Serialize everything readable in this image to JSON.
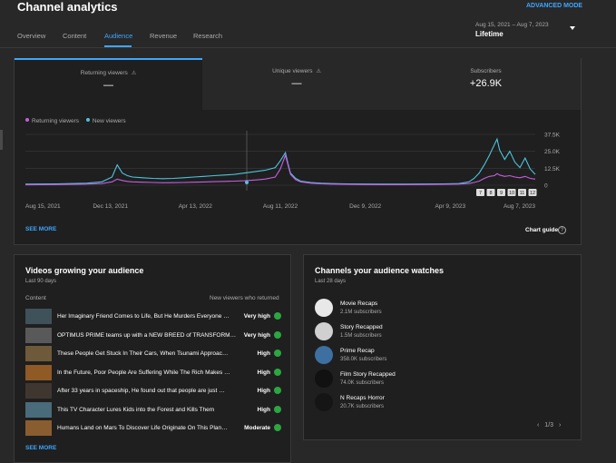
{
  "header": {
    "title": "Channel analytics",
    "advanced_mode": "ADVANCED MODE",
    "date_range": "Aug 15, 2021 – Aug 7, 2023",
    "period": "Lifetime"
  },
  "tabs": [
    {
      "label": "Overview"
    },
    {
      "label": "Content"
    },
    {
      "label": "Audience",
      "active": true
    },
    {
      "label": "Revenue"
    },
    {
      "label": "Research"
    }
  ],
  "kpis": [
    {
      "label": "Returning viewers",
      "value": "—"
    },
    {
      "label": "Unique viewers",
      "value": "—"
    },
    {
      "label": "Subscribers",
      "value": "+26.9K"
    }
  ],
  "chart_data": {
    "type": "line",
    "x_tick_labels": [
      "Aug 15, 2021",
      "Dec 13, 2021",
      "Apr 13, 2022",
      "Aug 11, 2022",
      "Dec 9, 2022",
      "Apr 9, 2023",
      "Aug 7, 2023"
    ],
    "y_tick_labels": [
      "37.5K",
      "25.0K",
      "12.5K",
      "0"
    ],
    "ylim": [
      0,
      37500
    ],
    "grid": true,
    "legend_position": "top-left",
    "x": [
      0,
      0.03,
      0.06,
      0.09,
      0.12,
      0.15,
      0.17,
      0.18,
      0.19,
      0.2,
      0.21,
      0.23,
      0.25,
      0.27,
      0.29,
      0.31,
      0.33,
      0.35,
      0.37,
      0.39,
      0.41,
      0.43,
      0.45,
      0.47,
      0.49,
      0.5,
      0.51,
      0.515,
      0.52,
      0.53,
      0.54,
      0.56,
      0.58,
      0.6,
      0.63,
      0.66,
      0.7,
      0.74,
      0.78,
      0.82,
      0.85,
      0.87,
      0.88,
      0.89,
      0.9,
      0.91,
      0.92,
      0.925,
      0.93,
      0.94,
      0.95,
      0.96,
      0.97,
      0.98,
      0.99,
      1
    ],
    "series": [
      {
        "name": "Returning viewers",
        "color": "#c65ee0",
        "values": [
          300,
          400,
          500,
          600,
          800,
          1200,
          2500,
          4500,
          3500,
          2800,
          2500,
          2200,
          2000,
          1800,
          1900,
          2000,
          2200,
          2400,
          2600,
          2800,
          3000,
          3300,
          3800,
          4500,
          6000,
          12000,
          22000,
          15000,
          8000,
          4000,
          2500,
          1500,
          1000,
          800,
          600,
          500,
          400,
          400,
          500,
          600,
          800,
          1200,
          2000,
          3000,
          5000,
          6500,
          7000,
          8500,
          7500,
          6500,
          7000,
          6000,
          5500,
          6500,
          5000,
          4500
        ]
      },
      {
        "name": "New viewers",
        "color": "#4cc4dd",
        "values": [
          800,
          900,
          1000,
          1200,
          1500,
          2500,
          6000,
          15000,
          9000,
          7000,
          6000,
          5500,
          5000,
          4800,
          5000,
          5500,
          6000,
          6500,
          7000,
          7500,
          8000,
          9000,
          10000,
          11000,
          13000,
          18000,
          24000,
          16000,
          9000,
          5000,
          3000,
          2000,
          1500,
          1200,
          1000,
          900,
          800,
          800,
          900,
          1000,
          1200,
          2500,
          5000,
          9000,
          15000,
          22000,
          30000,
          34000,
          26000,
          19000,
          25000,
          17000,
          13000,
          20000,
          12000,
          8000
        ]
      }
    ]
  },
  "chart_badges": [
    "7",
    "8",
    "9",
    "10",
    "11",
    "12"
  ],
  "main": {
    "see_more": "SEE MORE",
    "chart_guide": "Chart guide",
    "help_icon": "?"
  },
  "videos": {
    "title": "Videos growing your audience",
    "subtitle": "Last 90 days",
    "col_content": "Content",
    "col_metric": "New viewers who returned",
    "see_more": "SEE MORE",
    "rows": [
      {
        "title": "Her Imaginary Friend Comes to Life, But He Murders Everyone …",
        "level": "Very high",
        "thumb": "#3f5159"
      },
      {
        "title": "OPTIMUS PRIME teams up with a NEW BREED of TRANSFORM…",
        "level": "Very high",
        "thumb": "#595959"
      },
      {
        "title": "These People Get Stuck In Their Cars, When Tsunami Approac…",
        "level": "High",
        "thumb": "#6e5a3a"
      },
      {
        "title": "In the Future, Poor People Are Suffering While The Rich Makes …",
        "level": "High",
        "thumb": "#8f5a26"
      },
      {
        "title": "After 33 years in spaceship, He found out that people are just …",
        "level": "High",
        "thumb": "#403630"
      },
      {
        "title": "This TV Character Lures Kids into the Forest and Kills Them",
        "level": "High",
        "thumb": "#4a6b7a"
      },
      {
        "title": "Humans Land on Mars To Discover Life Originate On This Plan…",
        "level": "Moderate",
        "thumb": "#8a5d30"
      }
    ]
  },
  "channels": {
    "title": "Channels your audience watches",
    "subtitle": "Last 28 days",
    "pager": "1/3",
    "rows": [
      {
        "name": "Movie Recaps",
        "subs": "2.1M subscribers",
        "color": "#e8e8e8"
      },
      {
        "name": "Story Recapped",
        "subs": "1.5M subscribers",
        "color": "#d0d0d0"
      },
      {
        "name": "Prime Recap",
        "subs": "358.0K subscribers",
        "color": "#3d6fa0"
      },
      {
        "name": "Film Story Recapped",
        "subs": "74.0K subscribers",
        "color": "#111111"
      },
      {
        "name": "N Recaps Horror",
        "subs": "20.7K subscribers",
        "color": "#151515"
      }
    ]
  }
}
